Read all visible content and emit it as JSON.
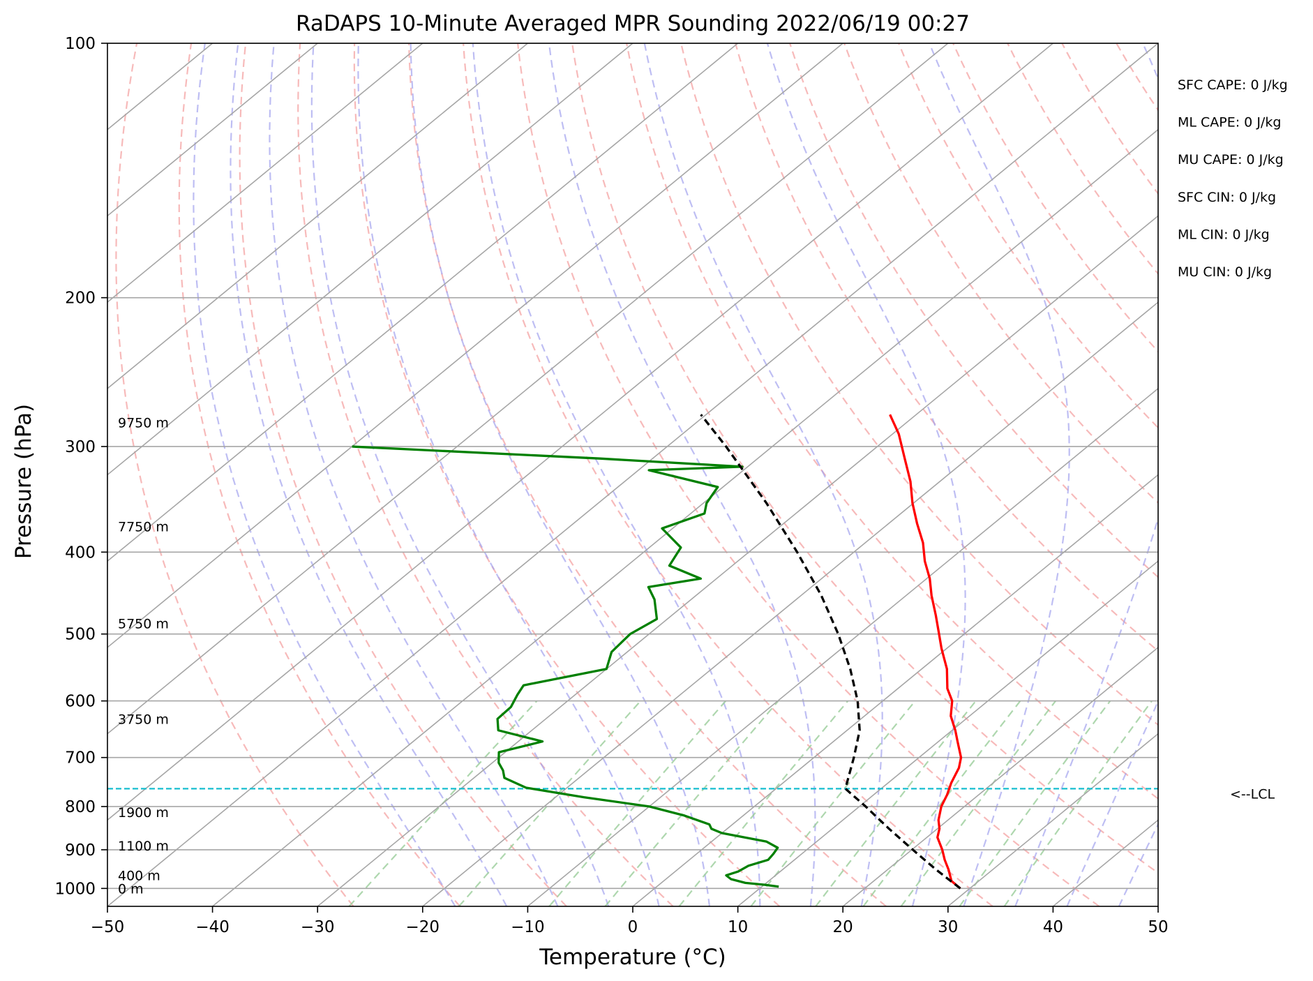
{
  "chart_data": {
    "type": "skew-t log-p sounding",
    "title": "RaDAPS 10-Minute Averaged MPR Sounding 2022/06/19 00:27",
    "xlabel": "Temperature (°C)",
    "ylabel": "Pressure (hPa)",
    "xlim": [
      -50,
      50
    ],
    "ylim": [
      1050,
      100
    ],
    "y_scale": "log",
    "x_ticks": [
      "−50",
      "−40",
      "−30",
      "−20",
      "−10",
      "0",
      "10",
      "20",
      "30",
      "40",
      "50"
    ],
    "y_ticks": [
      "100",
      "200",
      "300",
      "400",
      "500",
      "600",
      "700",
      "800",
      "900",
      "1000"
    ],
    "grid": "isobars and skewed isotherms on",
    "background_lines": {
      "dry_adiabats_color": "#f4a3a3",
      "moist_adiabats_color": "#a3a3ee",
      "mixing_ratio_color": "#9acd9a",
      "isotherm_color": "#a6a6a6",
      "isobar_color": "#a6a6a6"
    },
    "series": [
      {
        "id": "temperature",
        "color": "#ff0000",
        "style": "solid",
        "points": [
          [
            1000,
            29.1
          ],
          [
            980,
            27.4
          ],
          [
            950,
            25.8
          ],
          [
            925,
            24.3
          ],
          [
            900,
            22.9
          ],
          [
            870,
            21.0
          ],
          [
            850,
            20.2
          ],
          [
            830,
            19.1
          ],
          [
            800,
            17.8
          ],
          [
            775,
            17.0
          ],
          [
            750,
            16.0
          ],
          [
            720,
            15.0
          ],
          [
            700,
            14.0
          ],
          [
            670,
            11.8
          ],
          [
            650,
            10.3
          ],
          [
            625,
            8.2
          ],
          [
            600,
            6.6
          ],
          [
            580,
            4.7
          ],
          [
            550,
            2.4
          ],
          [
            520,
            -0.5
          ],
          [
            500,
            -2.4
          ],
          [
            475,
            -4.9
          ],
          [
            450,
            -7.6
          ],
          [
            430,
            -9.7
          ],
          [
            410,
            -12.2
          ],
          [
            390,
            -14.5
          ],
          [
            370,
            -17.3
          ],
          [
            350,
            -20.1
          ],
          [
            330,
            -22.8
          ],
          [
            310,
            -26.0
          ],
          [
            290,
            -29.4
          ],
          [
            275,
            -32.5
          ]
        ]
      },
      {
        "id": "dewpoint",
        "color": "#008000",
        "style": "solid",
        "points": [
          [
            995,
            11.6
          ],
          [
            990,
            10.0
          ],
          [
            985,
            8.0
          ],
          [
            975,
            6.2
          ],
          [
            965,
            5.3
          ],
          [
            955,
            6.0
          ],
          [
            940,
            6.3
          ],
          [
            925,
            7.5
          ],
          [
            910,
            7.3
          ],
          [
            895,
            7.0
          ],
          [
            880,
            5.2
          ],
          [
            860,
            0.0
          ],
          [
            850,
            -1.5
          ],
          [
            840,
            -2.2
          ],
          [
            820,
            -5.6
          ],
          [
            800,
            -10.0
          ],
          [
            780,
            -17.3
          ],
          [
            760,
            -23.9
          ],
          [
            740,
            -27.1
          ],
          [
            725,
            -28.1
          ],
          [
            710,
            -29.4
          ],
          [
            690,
            -30.6
          ],
          [
            670,
            -27.7
          ],
          [
            650,
            -33.2
          ],
          [
            630,
            -34.6
          ],
          [
            610,
            -34.7
          ],
          [
            590,
            -35.5
          ],
          [
            575,
            -36.0
          ],
          [
            550,
            -30.0
          ],
          [
            525,
            -31.5
          ],
          [
            500,
            -31.8
          ],
          [
            480,
            -31.0
          ],
          [
            455,
            -33.5
          ],
          [
            440,
            -35.5
          ],
          [
            430,
            -31.5
          ],
          [
            415,
            -36.0
          ],
          [
            395,
            -37.0
          ],
          [
            375,
            -41.0
          ],
          [
            360,
            -38.7
          ],
          [
            350,
            -39.7
          ],
          [
            335,
            -40.5
          ],
          [
            320,
            -49.0
          ],
          [
            317,
            -40.5
          ],
          [
            310,
            -55.0
          ],
          [
            300,
            -80.0
          ]
        ]
      },
      {
        "id": "parcel",
        "color": "#000000",
        "style": "dashed",
        "points": [
          [
            1000,
            29.1
          ],
          [
            950,
            24.6
          ],
          [
            900,
            20.1
          ],
          [
            850,
            15.4
          ],
          [
            800,
            10.6
          ],
          [
            762,
            6.6
          ],
          [
            700,
            3.8
          ],
          [
            650,
            1.2
          ],
          [
            600,
            -2.4
          ],
          [
            550,
            -6.8
          ],
          [
            500,
            -12.0
          ],
          [
            450,
            -18.1
          ],
          [
            400,
            -25.4
          ],
          [
            350,
            -34.0
          ],
          [
            300,
            -44.4
          ],
          [
            275,
            -50.5
          ]
        ]
      }
    ],
    "lcl": {
      "pressure": 762,
      "label": "<--LCL",
      "color": "#17becf"
    },
    "height_labels": [
      {
        "pressure": 1000,
        "label": "0 m"
      },
      {
        "pressure": 965,
        "label": "400 m"
      },
      {
        "pressure": 890,
        "label": "1100 m"
      },
      {
        "pressure": 812,
        "label": "1900 m"
      },
      {
        "pressure": 630,
        "label": "3750 m"
      },
      {
        "pressure": 486,
        "label": "5750 m"
      },
      {
        "pressure": 373,
        "label": "7750 m"
      },
      {
        "pressure": 281,
        "label": "9750 m"
      }
    ],
    "indices": [
      "SFC CAPE: 0 J/kg",
      "ML CAPE: 0 J/kg",
      "MU CAPE: 0 J/kg",
      "SFC CIN: 0 J/kg",
      "ML CIN: 0 J/kg",
      "MU CIN: 0 J/kg"
    ]
  }
}
